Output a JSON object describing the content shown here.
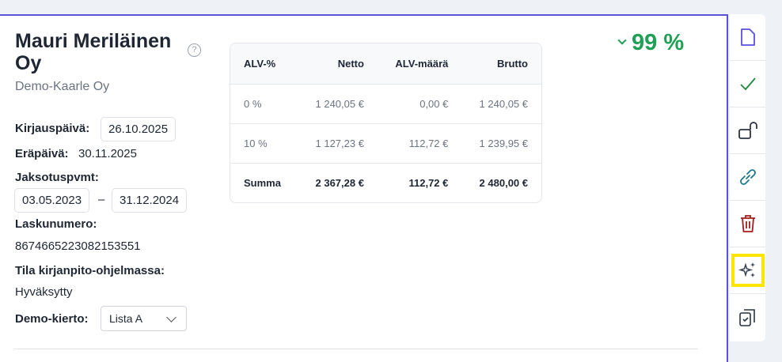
{
  "header": {
    "company": "Mauri Meriläinen Oy",
    "subtitle": "Demo-Kaarle Oy",
    "help": "?"
  },
  "fields": {
    "posting_date_label": "Kirjauspäivä:",
    "posting_date": "26.10.2025",
    "due_date_label": "Eräpäivä:",
    "due_date": "30.11.2025",
    "period_label": "Jaksotuspvmt:",
    "period_start": "03.05.2023",
    "period_sep": "–",
    "period_end": "31.12.2024",
    "invoice_number_label": "Laskunumero:",
    "invoice_number": "8674665223082153551",
    "status_label": "Tila kirjanpito-ohjelmassa:",
    "status": "Hyväksytty",
    "circulation_label": "Demo-kierto:",
    "circulation": "Lista A"
  },
  "vat_table": {
    "headers": [
      "ALV-%",
      "Netto",
      "ALV-määrä",
      "Brutto"
    ],
    "rows": [
      [
        "0 %",
        "1 240,05 €",
        "0,00 €",
        "1 240,05 €"
      ],
      [
        "10 %",
        "1 127,23 €",
        "112,72 €",
        "1 239,95 €"
      ]
    ],
    "sum": [
      "Summa",
      "2 367,28 €",
      "112,72 €",
      "2 480,00 €"
    ]
  },
  "confidence": "99 %",
  "colors": {
    "accent": "#5b4fe0",
    "success": "#1fa055",
    "danger": "#a51d1d",
    "link": "#1a7a8c",
    "highlight": "#ffe600"
  },
  "sidebar": [
    "document-icon",
    "check-icon",
    "unlock-icon",
    "link-icon",
    "trash-icon",
    "sparkles-icon",
    "clipboard-check-icon"
  ]
}
